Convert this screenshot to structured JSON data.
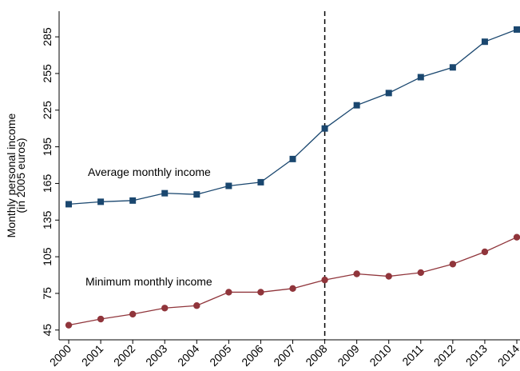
{
  "chart_data": {
    "type": "line",
    "ylabel": [
      "Monthly personal income",
      "(in 2005 euros)"
    ],
    "x": [
      2000,
      2001,
      2002,
      2003,
      2004,
      2005,
      2006,
      2007,
      2008,
      2009,
      2010,
      2011,
      2012,
      2013,
      2014
    ],
    "series": [
      {
        "name": "Average monthly income",
        "color": "#1a476f",
        "marker": "square",
        "values": [
          148,
          150,
          151,
          157,
          156,
          163,
          166,
          185,
          210,
          229,
          239,
          252,
          260,
          281,
          291
        ]
      },
      {
        "name": "Minimum monthly income",
        "color": "#90353b",
        "marker": "circle",
        "values": [
          49,
          54,
          58,
          63,
          65,
          76,
          76,
          79,
          86,
          91,
          89,
          92,
          99,
          109,
          121
        ]
      }
    ],
    "vline": 2008,
    "xlim": [
      1999.7,
      2014.1
    ],
    "ylim": [
      37,
      306
    ],
    "xticks": [
      2000,
      2001,
      2002,
      2003,
      2004,
      2005,
      2006,
      2007,
      2008,
      2009,
      2010,
      2011,
      2012,
      2013,
      2014
    ],
    "yticks": [
      45,
      75,
      105,
      135,
      165,
      195,
      225,
      255,
      285
    ],
    "grid": false
  }
}
